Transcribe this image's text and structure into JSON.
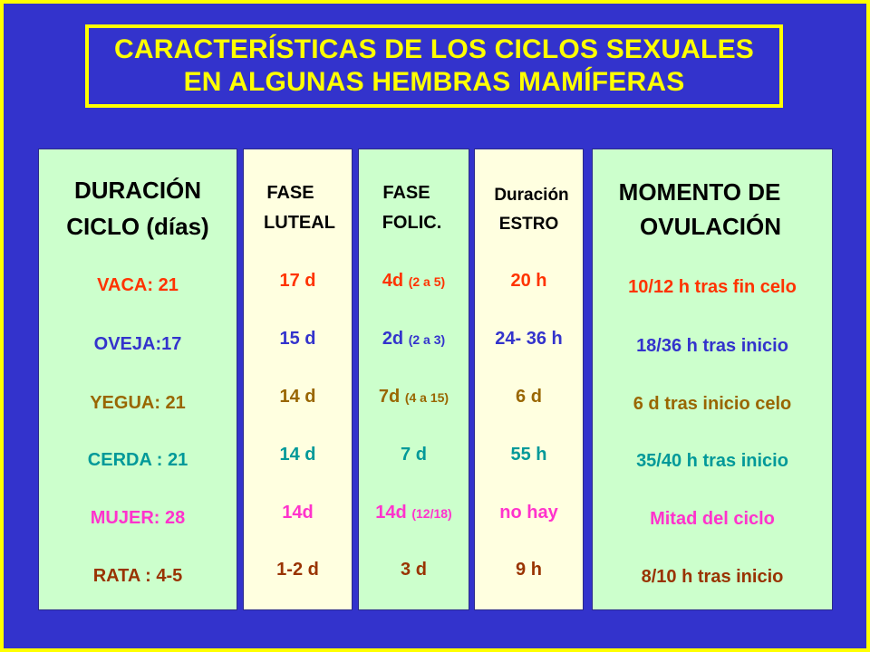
{
  "title": {
    "line1": "CARACTERÍSTICAS DE LOS CICLOS SEXUALES",
    "line2": "EN ALGUNAS HEMBRAS MAMÍFERAS"
  },
  "colors": {
    "background": "#3333cc",
    "border": "#ffff00",
    "panel_green": "#ccffcc",
    "panel_cream": "#ffffe0",
    "row_colors": [
      "#ff3300",
      "#3333cc",
      "#996600",
      "#009999",
      "#ff33cc",
      "#993300"
    ]
  },
  "columns": {
    "duracion": {
      "header_line1": "DURACIÓN",
      "header_line2": "CICLO (días)",
      "rows": [
        "VACA: 21",
        "OVEJA:17",
        "YEGUA: 21",
        "CERDA : 21",
        "MUJER: 28",
        "RATA : 4-5"
      ]
    },
    "luteal": {
      "header_line1": "FASE",
      "header_line2": "LUTEAL",
      "rows": [
        "17 d",
        "15 d",
        "14 d",
        "14 d",
        "14d",
        "1-2 d"
      ]
    },
    "folic": {
      "header_line1": "FASE",
      "header_line2": "FOLIC.",
      "rows": [
        {
          "main": "4d",
          "note": "(2 a 5)"
        },
        {
          "main": "2d",
          "note": "(2 a 3)"
        },
        {
          "main": "7d",
          "note": "(4 a 15)"
        },
        {
          "main": "7 d",
          "note": ""
        },
        {
          "main": "14d",
          "note": "(12/18)"
        },
        {
          "main": "3 d",
          "note": ""
        }
      ]
    },
    "estro": {
      "header_line1": "Duración",
      "header_line2": "ESTRO",
      "rows": [
        "20 h",
        "24- 36 h",
        "6 d",
        "55 h",
        "no hay",
        "9 h"
      ]
    },
    "ovulacion": {
      "header_line1": "MOMENTO DE",
      "header_line2": "OVULACIÓN",
      "rows": [
        "10/12 h tras fin celo",
        "18/36 h tras inicio",
        "6 d tras inicio celo",
        "35/40 h tras inicio",
        "Mitad del ciclo",
        "8/10 h tras inicio"
      ]
    }
  }
}
